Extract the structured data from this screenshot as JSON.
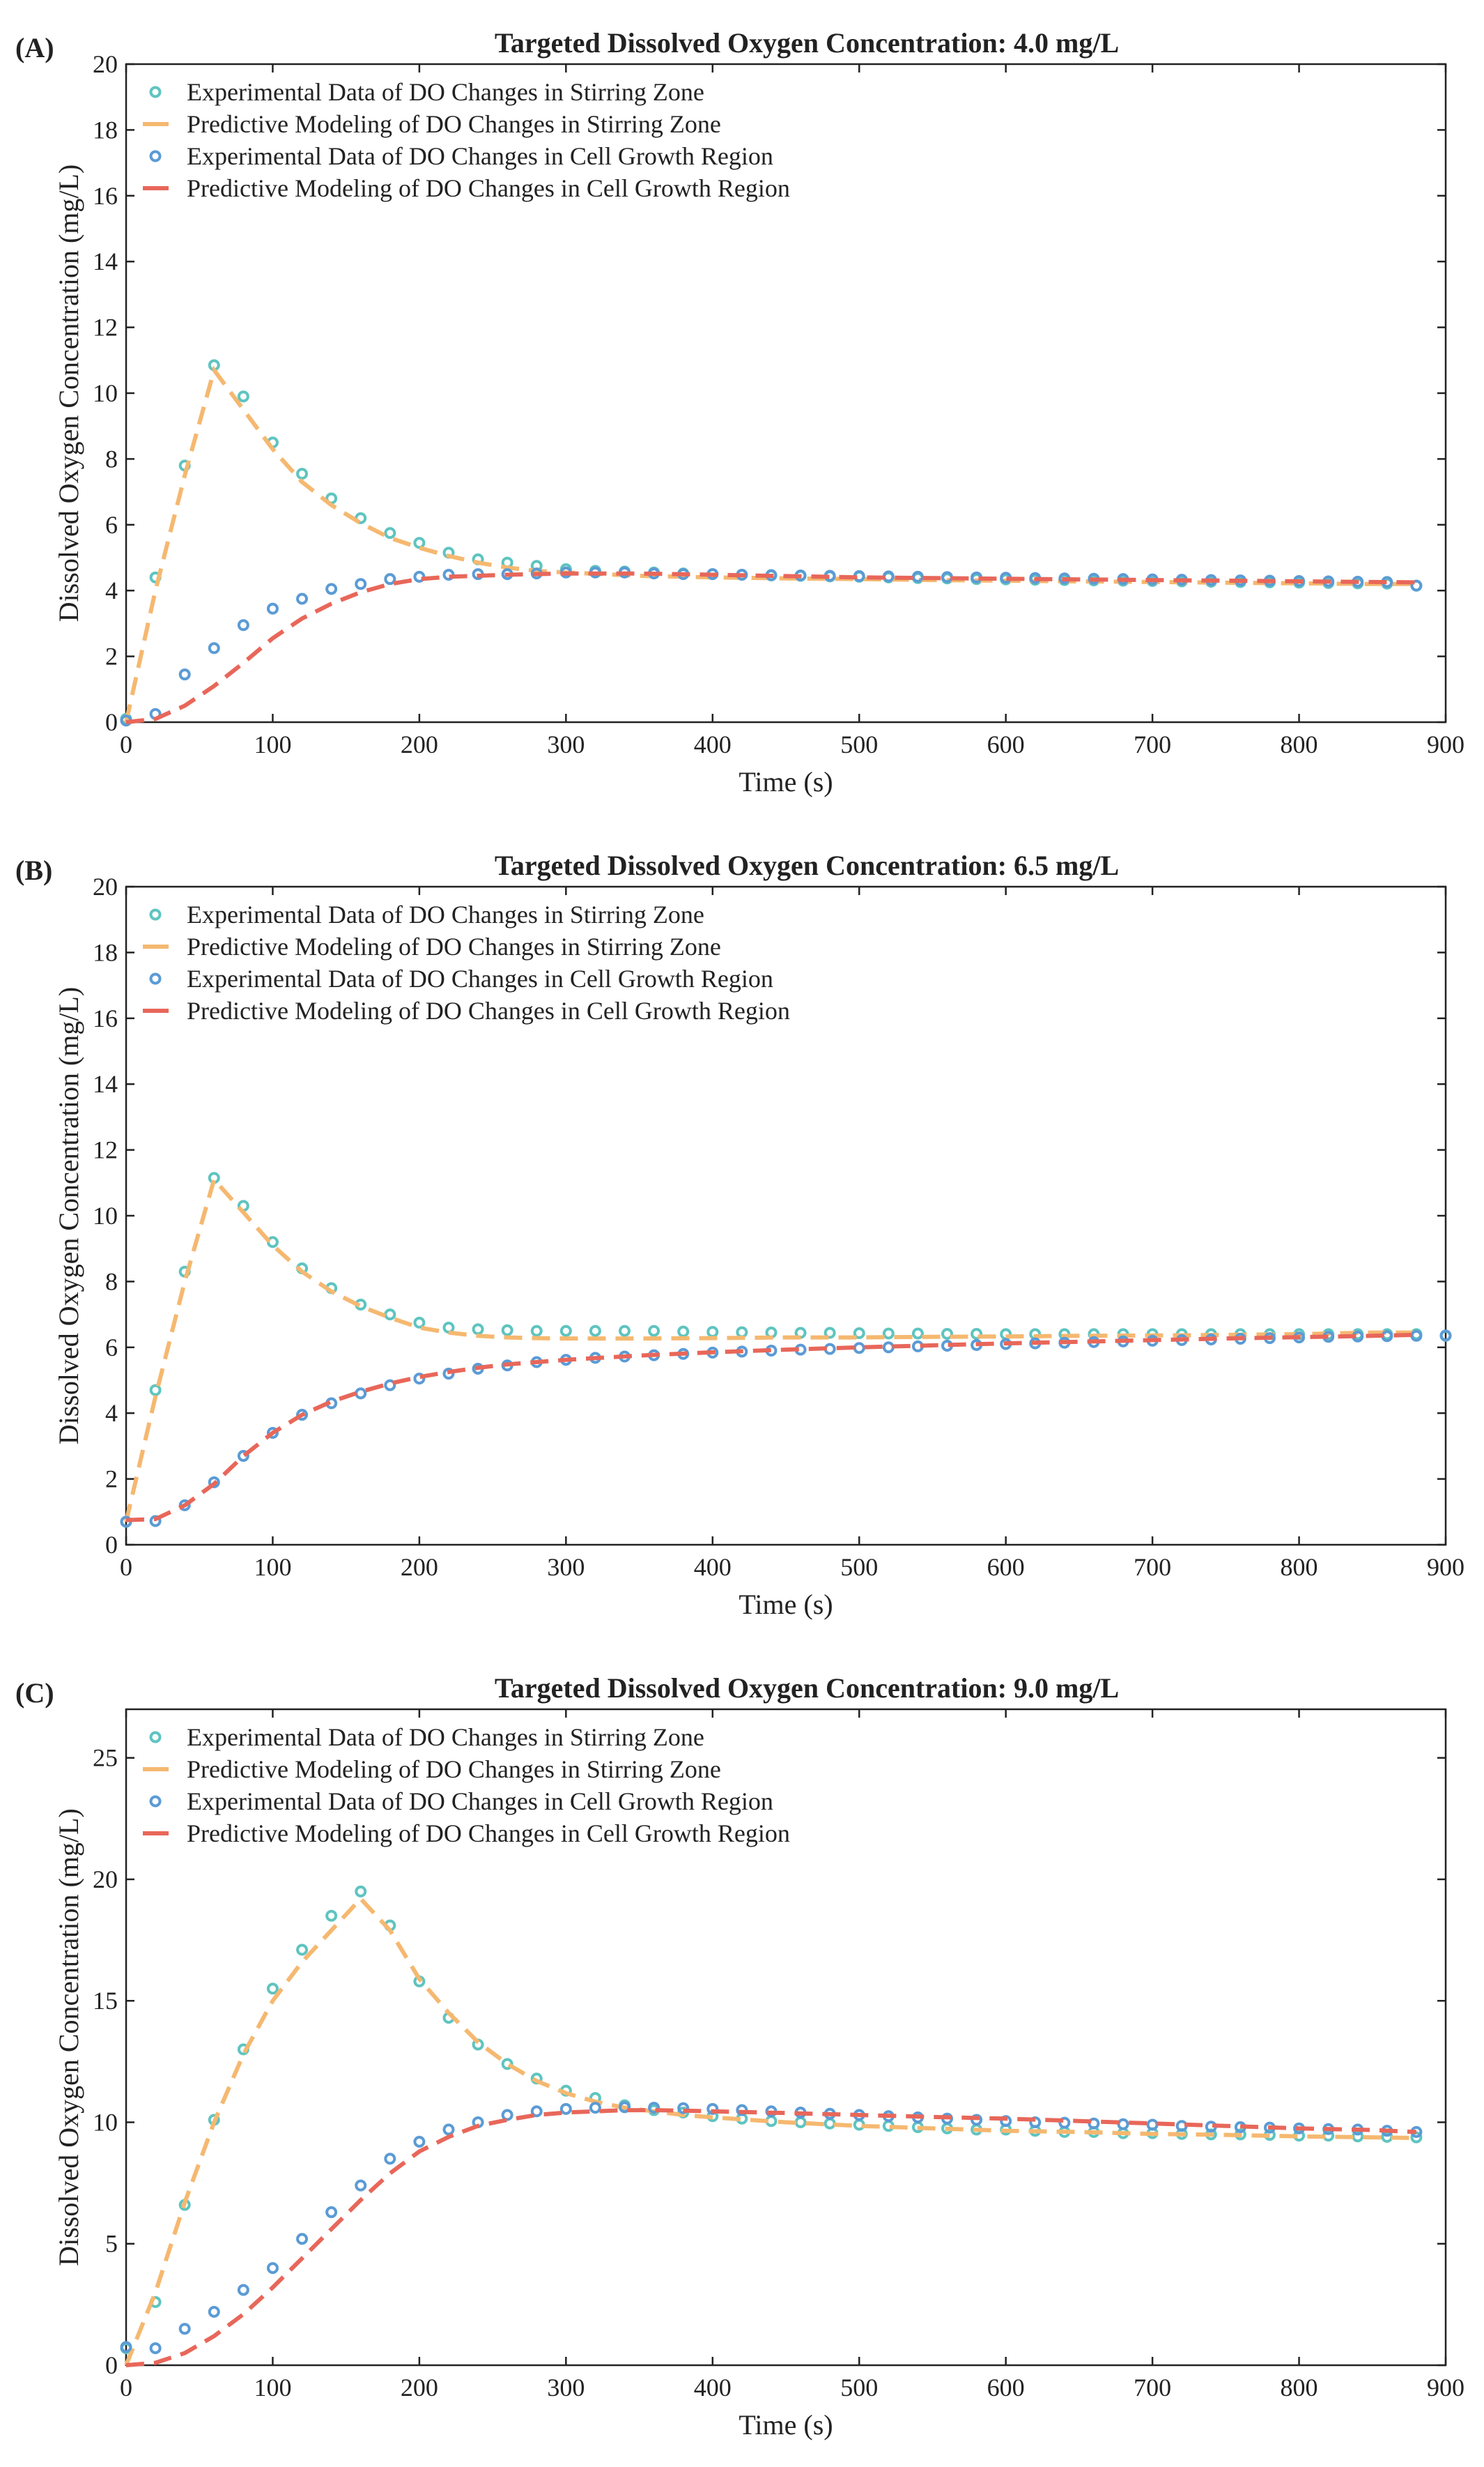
{
  "chart_data": [
    {
      "panel": "(A)",
      "type": "line",
      "title": "Targeted Dissolved Oxygen Concentration: 4.0 mg/L",
      "xlabel": "Time (s)",
      "ylabel": "Dissolved Oxygen Concentration (mg/L)",
      "xlim": [
        0,
        900
      ],
      "ylim": [
        0,
        20
      ],
      "xticks": [
        0,
        100,
        200,
        300,
        400,
        500,
        600,
        700,
        800,
        900
      ],
      "yticks": [
        0,
        2,
        4,
        6,
        8,
        10,
        12,
        14,
        16,
        18,
        20
      ],
      "legend_position": "top-left",
      "series": [
        {
          "name": "Experimental Data of DO Changes in Stirring Zone",
          "style": "markers",
          "color": "#5fc4c0",
          "x": [
            0,
            20,
            40,
            60,
            80,
            100,
            120,
            140,
            160,
            180,
            200,
            220,
            240,
            260,
            280,
            300,
            320,
            340,
            360,
            380,
            400,
            420,
            440,
            460,
            480,
            500,
            520,
            540,
            560,
            580,
            600,
            620,
            640,
            660,
            680,
            700,
            720,
            740,
            760,
            780,
            800,
            820,
            840,
            860,
            880
          ],
          "y": [
            0.1,
            4.4,
            7.8,
            10.85,
            9.9,
            8.5,
            7.55,
            6.8,
            6.2,
            5.75,
            5.45,
            5.15,
            4.95,
            4.85,
            4.75,
            4.65,
            4.6,
            4.58,
            4.55,
            4.52,
            4.5,
            4.48,
            4.46,
            4.45,
            4.43,
            4.42,
            4.4,
            4.38,
            4.37,
            4.35,
            4.34,
            4.33,
            4.32,
            4.31,
            4.3,
            4.29,
            4.28,
            4.27,
            4.26,
            4.25,
            4.24,
            4.23,
            4.22,
            4.21,
            4.15
          ]
        },
        {
          "name": "Predictive Modeling of DO Changes in Stirring Zone",
          "style": "dashed",
          "color": "#f5b870",
          "x": [
            0,
            20,
            40,
            60,
            80,
            100,
            120,
            140,
            160,
            180,
            200,
            220,
            240,
            260,
            280,
            300,
            350,
            400,
            450,
            500,
            550,
            600,
            650,
            700,
            750,
            800,
            850,
            880
          ],
          "y": [
            0,
            4.0,
            7.5,
            10.7,
            9.5,
            8.3,
            7.3,
            6.6,
            6.05,
            5.6,
            5.3,
            5.05,
            4.85,
            4.7,
            4.6,
            4.55,
            4.45,
            4.4,
            4.37,
            4.35,
            4.32,
            4.3,
            4.28,
            4.26,
            4.24,
            4.22,
            4.2,
            4.2
          ]
        },
        {
          "name": "Experimental Data of DO Changes in Cell Growth Region",
          "style": "markers",
          "color": "#5b9bd5",
          "x": [
            0,
            20,
            40,
            60,
            80,
            100,
            120,
            140,
            160,
            180,
            200,
            220,
            240,
            260,
            280,
            300,
            320,
            340,
            360,
            380,
            400,
            420,
            440,
            460,
            480,
            500,
            520,
            540,
            560,
            580,
            600,
            620,
            640,
            660,
            680,
            700,
            720,
            740,
            760,
            780,
            800,
            820,
            840,
            860,
            880
          ],
          "y": [
            0.05,
            0.25,
            1.45,
            2.25,
            2.95,
            3.45,
            3.75,
            4.05,
            4.2,
            4.35,
            4.42,
            4.48,
            4.5,
            4.5,
            4.52,
            4.55,
            4.55,
            4.55,
            4.52,
            4.5,
            4.5,
            4.48,
            4.47,
            4.46,
            4.45,
            4.44,
            4.43,
            4.42,
            4.41,
            4.4,
            4.39,
            4.38,
            4.37,
            4.36,
            4.35,
            4.34,
            4.33,
            4.32,
            4.31,
            4.3,
            4.29,
            4.28,
            4.27,
            4.26,
            4.15
          ]
        },
        {
          "name": "Predictive Modeling of DO Changes in Cell Growth Region",
          "style": "dashed",
          "color": "#e8675a",
          "x": [
            0,
            20,
            40,
            60,
            80,
            100,
            120,
            140,
            160,
            180,
            200,
            220,
            240,
            260,
            280,
            300,
            350,
            400,
            450,
            500,
            550,
            600,
            650,
            700,
            750,
            800,
            850,
            880
          ],
          "y": [
            0,
            0.1,
            0.5,
            1.1,
            1.8,
            2.55,
            3.15,
            3.6,
            3.95,
            4.2,
            4.35,
            4.42,
            4.45,
            4.48,
            4.5,
            4.52,
            4.52,
            4.48,
            4.44,
            4.4,
            4.38,
            4.36,
            4.34,
            4.32,
            4.3,
            4.28,
            4.26,
            4.25
          ]
        }
      ]
    },
    {
      "panel": "(B)",
      "type": "line",
      "title": "Targeted Dissolved Oxygen Concentration: 6.5 mg/L",
      "xlabel": "Time (s)",
      "ylabel": "Dissolved Oxygen Concentration (mg/L)",
      "xlim": [
        0,
        900
      ],
      "ylim": [
        0,
        20
      ],
      "xticks": [
        0,
        100,
        200,
        300,
        400,
        500,
        600,
        700,
        800,
        900
      ],
      "yticks": [
        0,
        2,
        4,
        6,
        8,
        10,
        12,
        14,
        16,
        18,
        20
      ],
      "legend_position": "top-left",
      "series": [
        {
          "name": "Experimental Data of DO Changes in Stirring Zone",
          "style": "markers",
          "color": "#5fc4c0",
          "x": [
            0,
            20,
            40,
            60,
            80,
            100,
            120,
            140,
            160,
            180,
            200,
            220,
            240,
            260,
            280,
            300,
            320,
            340,
            360,
            380,
            400,
            420,
            440,
            460,
            480,
            500,
            520,
            540,
            560,
            580,
            600,
            620,
            640,
            660,
            680,
            700,
            720,
            740,
            760,
            780,
            800,
            820,
            840,
            860,
            880,
            900
          ],
          "y": [
            0.7,
            4.7,
            8.3,
            11.15,
            10.3,
            9.2,
            8.4,
            7.8,
            7.3,
            7.0,
            6.75,
            6.6,
            6.55,
            6.52,
            6.5,
            6.5,
            6.5,
            6.5,
            6.5,
            6.48,
            6.47,
            6.46,
            6.45,
            6.44,
            6.44,
            6.43,
            6.42,
            6.42,
            6.41,
            6.41,
            6.4,
            6.4,
            6.4,
            6.4,
            6.4,
            6.4,
            6.4,
            6.4,
            6.4,
            6.4,
            6.4,
            6.4,
            6.4,
            6.4,
            6.4,
            6.35
          ]
        },
        {
          "name": "Predictive Modeling of DO Changes in Stirring Zone",
          "style": "dashed",
          "color": "#f5b870",
          "x": [
            0,
            20,
            40,
            60,
            80,
            100,
            120,
            140,
            160,
            180,
            200,
            220,
            240,
            260,
            280,
            300,
            350,
            400,
            450,
            500,
            550,
            600,
            650,
            700,
            750,
            800,
            850,
            880
          ],
          "y": [
            0.7,
            4.5,
            8.0,
            11.1,
            10.1,
            9.1,
            8.3,
            7.7,
            7.25,
            6.9,
            6.6,
            6.45,
            6.35,
            6.3,
            6.28,
            6.27,
            6.27,
            6.28,
            6.3,
            6.3,
            6.32,
            6.33,
            6.35,
            6.36,
            6.38,
            6.4,
            6.45,
            6.45
          ]
        },
        {
          "name": "Experimental Data of DO Changes in Cell Growth Region",
          "style": "markers",
          "color": "#5b9bd5",
          "x": [
            0,
            20,
            40,
            60,
            80,
            100,
            120,
            140,
            160,
            180,
            200,
            220,
            240,
            260,
            280,
            300,
            320,
            340,
            360,
            380,
            400,
            420,
            440,
            460,
            480,
            500,
            520,
            540,
            560,
            580,
            600,
            620,
            640,
            660,
            680,
            700,
            720,
            740,
            760,
            780,
            800,
            820,
            840,
            860,
            880,
            900
          ],
          "y": [
            0.7,
            0.72,
            1.2,
            1.9,
            2.7,
            3.4,
            3.95,
            4.3,
            4.6,
            4.85,
            5.05,
            5.2,
            5.35,
            5.45,
            5.55,
            5.62,
            5.68,
            5.72,
            5.76,
            5.8,
            5.84,
            5.87,
            5.9,
            5.93,
            5.95,
            5.98,
            6.0,
            6.03,
            6.05,
            6.07,
            6.1,
            6.12,
            6.14,
            6.16,
            6.18,
            6.2,
            6.22,
            6.24,
            6.26,
            6.28,
            6.3,
            6.32,
            6.33,
            6.34,
            6.35,
            6.36
          ]
        },
        {
          "name": "Predictive Modeling of DO Changes in Cell Growth Region",
          "style": "dashed",
          "color": "#e8675a",
          "x": [
            0,
            20,
            40,
            60,
            80,
            100,
            120,
            140,
            160,
            180,
            200,
            220,
            240,
            260,
            280,
            300,
            350,
            400,
            450,
            500,
            550,
            600,
            650,
            700,
            750,
            800,
            850,
            880
          ],
          "y": [
            0.75,
            0.78,
            1.2,
            1.85,
            2.7,
            3.4,
            3.95,
            4.35,
            4.65,
            4.9,
            5.1,
            5.25,
            5.38,
            5.48,
            5.55,
            5.62,
            5.75,
            5.85,
            5.93,
            6.0,
            6.06,
            6.12,
            6.17,
            6.22,
            6.27,
            6.31,
            6.35,
            6.38
          ]
        }
      ]
    },
    {
      "panel": "(C)",
      "type": "line",
      "title": "Targeted Dissolved Oxygen Concentration: 9.0 mg/L",
      "xlabel": "Time (s)",
      "ylabel": "Dissolved Oxygen Concentration (mg/L)",
      "xlim": [
        0,
        900
      ],
      "ylim": [
        0,
        27
      ],
      "xticks": [
        0,
        100,
        200,
        300,
        400,
        500,
        600,
        700,
        800,
        900
      ],
      "yticks": [
        0,
        5,
        10,
        15,
        20,
        25
      ],
      "legend_position": "top-left",
      "series": [
        {
          "name": "Experimental Data of DO Changes in Stirring Zone",
          "style": "markers",
          "color": "#5fc4c0",
          "x": [
            0,
            20,
            40,
            60,
            80,
            100,
            120,
            140,
            160,
            180,
            200,
            220,
            240,
            260,
            280,
            300,
            320,
            340,
            360,
            380,
            400,
            420,
            440,
            460,
            480,
            500,
            520,
            540,
            560,
            580,
            600,
            620,
            640,
            660,
            680,
            700,
            720,
            740,
            760,
            780,
            800,
            820,
            840,
            860,
            880
          ],
          "y": [
            0.7,
            2.6,
            6.6,
            10.1,
            13.0,
            15.5,
            17.1,
            18.5,
            19.5,
            18.1,
            15.8,
            14.3,
            13.2,
            12.4,
            11.8,
            11.3,
            11.0,
            10.7,
            10.5,
            10.4,
            10.25,
            10.15,
            10.05,
            10.0,
            9.95,
            9.9,
            9.85,
            9.8,
            9.75,
            9.7,
            9.7,
            9.65,
            9.6,
            9.6,
            9.55,
            9.55,
            9.52,
            9.5,
            9.5,
            9.48,
            9.45,
            9.45,
            9.42,
            9.4,
            9.38
          ]
        },
        {
          "name": "Predictive Modeling of DO Changes in Stirring Zone",
          "style": "dashed",
          "color": "#f5b870",
          "x": [
            0,
            20,
            40,
            60,
            80,
            100,
            120,
            140,
            160,
            180,
            200,
            220,
            240,
            260,
            280,
            300,
            320,
            340,
            360,
            380,
            400,
            450,
            500,
            550,
            600,
            650,
            700,
            750,
            800,
            850,
            880
          ],
          "y": [
            0,
            3.0,
            6.7,
            10.0,
            12.8,
            15.0,
            16.6,
            17.9,
            19.2,
            17.9,
            15.9,
            14.5,
            13.3,
            12.4,
            11.7,
            11.2,
            10.85,
            10.6,
            10.45,
            10.3,
            10.2,
            10.0,
            9.85,
            9.75,
            9.65,
            9.6,
            9.52,
            9.48,
            9.42,
            9.38,
            9.35
          ]
        },
        {
          "name": "Experimental Data of DO Changes in Cell Growth Region",
          "style": "markers",
          "color": "#5b9bd5",
          "x": [
            0,
            20,
            40,
            60,
            80,
            100,
            120,
            140,
            160,
            180,
            200,
            220,
            240,
            260,
            280,
            300,
            320,
            340,
            360,
            380,
            400,
            420,
            440,
            460,
            480,
            500,
            520,
            540,
            560,
            580,
            600,
            620,
            640,
            660,
            680,
            700,
            720,
            740,
            760,
            780,
            800,
            820,
            840,
            860,
            880
          ],
          "y": [
            0.75,
            0.7,
            1.5,
            2.2,
            3.1,
            4.0,
            5.2,
            6.3,
            7.4,
            8.5,
            9.2,
            9.7,
            10.0,
            10.3,
            10.45,
            10.55,
            10.6,
            10.62,
            10.6,
            10.58,
            10.55,
            10.5,
            10.45,
            10.4,
            10.35,
            10.3,
            10.25,
            10.2,
            10.15,
            10.1,
            10.05,
            10.0,
            9.98,
            9.95,
            9.92,
            9.9,
            9.85,
            9.82,
            9.8,
            9.78,
            9.75,
            9.72,
            9.7,
            9.65,
            9.6
          ]
        },
        {
          "name": "Predictive Modeling of DO Changes in Cell Growth Region",
          "style": "dashed",
          "color": "#e8675a",
          "x": [
            0,
            20,
            40,
            60,
            80,
            100,
            120,
            140,
            160,
            180,
            200,
            220,
            240,
            260,
            280,
            300,
            320,
            340,
            360,
            380,
            400,
            450,
            500,
            550,
            600,
            650,
            700,
            750,
            800,
            850,
            880
          ],
          "y": [
            0,
            0.1,
            0.5,
            1.2,
            2.1,
            3.2,
            4.4,
            5.6,
            6.8,
            7.9,
            8.8,
            9.4,
            9.85,
            10.1,
            10.3,
            10.4,
            10.45,
            10.5,
            10.5,
            10.48,
            10.45,
            10.38,
            10.3,
            10.22,
            10.15,
            10.05,
            9.95,
            9.85,
            9.75,
            9.68,
            9.6
          ]
        }
      ]
    }
  ]
}
